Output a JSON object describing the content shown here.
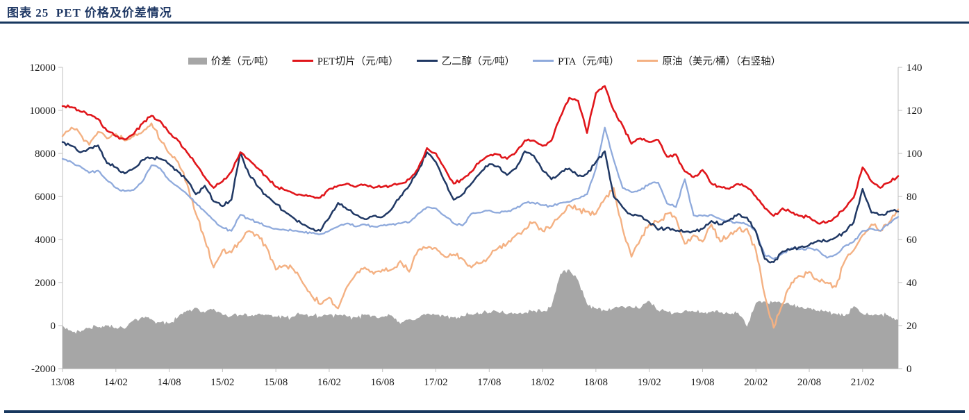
{
  "page": {
    "title": "图表 25  PET 价格及价差情况",
    "accent_color": "#17375E"
  },
  "chart_data": {
    "type": "line",
    "title": "PET 价格及价差情况",
    "legend_position": "top",
    "grid": false,
    "x_labels": [
      "13/08",
      "14/02",
      "14/08",
      "15/02",
      "15/08",
      "16/02",
      "16/08",
      "17/02",
      "17/08",
      "18/02",
      "18/08",
      "19/02",
      "19/08",
      "20/02",
      "20/08",
      "21/02"
    ],
    "months": [
      "13/08",
      "13/09",
      "13/10",
      "13/11",
      "13/12",
      "14/01",
      "14/02",
      "14/03",
      "14/04",
      "14/05",
      "14/06",
      "14/07",
      "14/08",
      "14/09",
      "14/10",
      "14/11",
      "14/12",
      "15/01",
      "15/02",
      "15/03",
      "15/04",
      "15/05",
      "15/06",
      "15/07",
      "15/08",
      "15/09",
      "15/10",
      "15/11",
      "15/12",
      "16/01",
      "16/02",
      "16/03",
      "16/04",
      "16/05",
      "16/06",
      "16/07",
      "16/08",
      "16/09",
      "16/10",
      "16/11",
      "16/12",
      "17/01",
      "17/02",
      "17/03",
      "17/04",
      "17/05",
      "17/06",
      "17/07",
      "17/08",
      "17/09",
      "17/10",
      "17/11",
      "17/12",
      "18/01",
      "18/02",
      "18/03",
      "18/04",
      "18/05",
      "18/06",
      "18/07",
      "18/08",
      "18/09",
      "18/10",
      "18/11",
      "18/12",
      "19/01",
      "19/02",
      "19/03",
      "19/04",
      "19/05",
      "19/06",
      "19/07",
      "19/08",
      "19/09",
      "19/10",
      "19/11",
      "19/12",
      "20/01",
      "20/02",
      "20/03",
      "20/04",
      "20/05",
      "20/06",
      "20/07",
      "20/08",
      "20/09",
      "20/10",
      "20/11",
      "20/12",
      "21/01",
      "21/02",
      "21/03",
      "21/04",
      "21/05",
      "21/06"
    ],
    "y_left": {
      "min": -2000,
      "max": 12000,
      "ticks": [
        "-2000",
        "0",
        "2000",
        "4000",
        "6000",
        "8000",
        "10000",
        "12000"
      ]
    },
    "y_right": {
      "min": 0,
      "max": 140,
      "ticks": [
        "0",
        "20",
        "40",
        "60",
        "80",
        "100",
        "120",
        "140"
      ]
    },
    "axis_color": "#BFBFBF",
    "tick_label_color": "#1a1a1a",
    "series": [
      {
        "id": "spread",
        "name": "价差（元/吨）",
        "type": "area",
        "axis": "left",
        "color": "#A6A6A6",
        "values": [
          0,
          -250,
          -300,
          -100,
          -80,
          0,
          -100,
          -150,
          250,
          400,
          300,
          150,
          100,
          400,
          700,
          830,
          600,
          780,
          500,
          450,
          500,
          450,
          550,
          500,
          420,
          380,
          420,
          520,
          460,
          420,
          520,
          470,
          420,
          380,
          520,
          460,
          420,
          470,
          80,
          300,
          350,
          550,
          500,
          420,
          380,
          450,
          520,
          560,
          600,
          630,
          520,
          560,
          600,
          700,
          650,
          900,
          2400,
          2600,
          2100,
          1000,
          800,
          700,
          800,
          900,
          850,
          800,
          1150,
          700,
          650,
          600,
          700,
          650,
          600,
          650,
          600,
          550,
          600,
          -50,
          1050,
          1120,
          1100,
          1050,
          950,
          850,
          800,
          700,
          650,
          550,
          450,
          900,
          550,
          500,
          520,
          430,
          260
        ]
      },
      {
        "id": "pet-chip",
        "name": "PET切片（元/吨）",
        "type": "line",
        "axis": "left",
        "color": "#E0161B",
        "values": [
          10200,
          10150,
          9950,
          9800,
          9600,
          9050,
          8800,
          8650,
          8900,
          9400,
          9750,
          9500,
          8950,
          8600,
          8050,
          7500,
          6900,
          6400,
          6700,
          7150,
          8050,
          7700,
          7300,
          6900,
          6450,
          6300,
          6150,
          6050,
          6000,
          5950,
          6350,
          6500,
          6600,
          6450,
          6550,
          6400,
          6450,
          6500,
          6600,
          6800,
          7300,
          8250,
          8000,
          7300,
          6600,
          6800,
          7150,
          7650,
          7900,
          7950,
          7750,
          8050,
          8600,
          8600,
          8350,
          8600,
          9700,
          10580,
          10450,
          8950,
          10800,
          11130,
          10000,
          9300,
          8450,
          8700,
          8530,
          8630,
          7850,
          7950,
          7160,
          6900,
          7230,
          6600,
          6450,
          6350,
          6580,
          6420,
          6000,
          5450,
          5100,
          5450,
          5250,
          5100,
          5050,
          4750,
          4800,
          5050,
          5450,
          5950,
          7350,
          6700,
          6400,
          6650,
          6950
        ]
      },
      {
        "id": "meg",
        "name": "乙二醇（元/吨）",
        "type": "line",
        "axis": "left",
        "color": "#203864",
        "values": [
          8530,
          8350,
          8050,
          8250,
          8370,
          7550,
          7350,
          7070,
          7300,
          7700,
          7800,
          7750,
          7500,
          7150,
          6750,
          6100,
          6500,
          5770,
          5550,
          5850,
          8050,
          7000,
          6450,
          6000,
          5650,
          5300,
          5000,
          4700,
          4500,
          4400,
          5000,
          5700,
          5400,
          5150,
          4950,
          5100,
          5050,
          5400,
          6000,
          6500,
          7200,
          8050,
          7600,
          6700,
          5850,
          6100,
          6600,
          7100,
          7500,
          7400,
          7000,
          7300,
          8100,
          7900,
          7200,
          6800,
          7100,
          7300,
          6950,
          7050,
          7600,
          8100,
          6000,
          5500,
          5150,
          5100,
          4800,
          4450,
          4550,
          4400,
          4350,
          4400,
          4500,
          4860,
          4700,
          4900,
          5180,
          5020,
          4370,
          3100,
          2950,
          3450,
          3550,
          3650,
          3750,
          3950,
          3900,
          4100,
          4350,
          4800,
          6350,
          5250,
          5150,
          5300,
          5300
        ]
      },
      {
        "id": "pta",
        "name": "PTA（元/吨）",
        "type": "line",
        "axis": "left",
        "color": "#8FAADC",
        "values": [
          7750,
          7600,
          7400,
          7100,
          7200,
          6750,
          6400,
          6250,
          6300,
          6700,
          7450,
          7300,
          6750,
          6450,
          6100,
          5700,
          5300,
          4900,
          4550,
          4400,
          5150,
          4950,
          4800,
          4600,
          4500,
          4450,
          4400,
          4350,
          4300,
          4250,
          4400,
          4600,
          4750,
          4600,
          4700,
          4600,
          4650,
          4700,
          4750,
          4800,
          5200,
          5500,
          5450,
          5100,
          4750,
          4650,
          5200,
          5250,
          5350,
          5250,
          5300,
          5450,
          5700,
          5700,
          5600,
          5550,
          5700,
          5750,
          5900,
          6100,
          7300,
          9200,
          7700,
          6400,
          6200,
          6300,
          6580,
          6645,
          5670,
          5510,
          6800,
          5120,
          5100,
          5150,
          4950,
          4850,
          4790,
          4700,
          4400,
          3270,
          3100,
          3350,
          3600,
          3550,
          3600,
          3500,
          3150,
          3300,
          3700,
          3900,
          4400,
          4500,
          4400,
          4750,
          5050
        ]
      },
      {
        "id": "crude",
        "name": "原油（美元/桶）（右竖轴）",
        "type": "line",
        "axis": "right",
        "color": "#F4B183",
        "values": [
          108,
          112,
          109,
          104,
          110,
          107,
          109,
          106,
          108,
          110,
          114,
          106,
          100,
          96,
          86,
          72,
          60,
          47,
          55,
          54,
          59,
          64,
          62,
          56,
          46,
          48,
          46,
          40,
          34,
          30,
          33,
          28,
          38,
          44,
          47,
          44,
          46,
          46,
          50,
          45,
          55,
          56,
          56,
          52,
          53,
          51,
          47,
          49,
          52,
          56,
          58,
          62,
          65,
          68,
          64,
          66,
          71,
          76,
          74,
          73,
          72,
          79,
          84,
          65,
          52,
          60,
          67,
          68,
          72,
          70,
          58,
          62,
          59,
          67,
          59,
          62,
          65,
          65,
          55,
          34,
          19,
          30,
          40,
          43,
          45,
          41,
          40,
          38,
          50,
          55,
          62,
          67,
          64,
          68,
          74
        ]
      }
    ]
  }
}
